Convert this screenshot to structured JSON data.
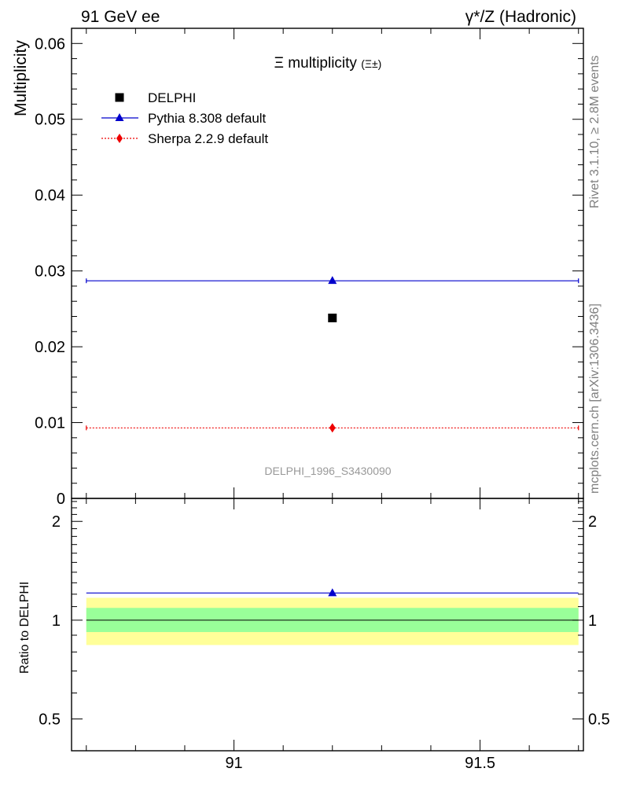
{
  "header": {
    "left": "91 GeV ee",
    "right": "γ*/Z (Hadronic)"
  },
  "side_labels": {
    "rivet": "Rivet 3.1.10, ≥ 2.8M events",
    "mcplots": "mcplots.cern.ch [arXiv:1306.3436]"
  },
  "watermark": "DELPHI_1996_S3430090",
  "chart_data": [
    {
      "type": "scatter",
      "title": "Ξ multiplicity (Ξ±)",
      "ylabel": "Multiplicity",
      "xlabel": "",
      "xlim": [
        90.67,
        91.71
      ],
      "ylim": [
        0,
        0.062
      ],
      "x_ticks": [],
      "y_ticks": [
        {
          "value": 0,
          "label": "0"
        },
        {
          "value": 0.01,
          "label": "0.01"
        },
        {
          "value": 0.02,
          "label": "0.02"
        },
        {
          "value": 0.03,
          "label": "0.03"
        },
        {
          "value": 0.04,
          "label": "0.04"
        },
        {
          "value": 0.05,
          "label": "0.05"
        },
        {
          "value": 0.06,
          "label": "0.06"
        }
      ],
      "legend_position": "top-left",
      "series": [
        {
          "name": "DELPHI",
          "marker": "square",
          "color": "#000000",
          "x": [
            91.2
          ],
          "y": [
            0.0238
          ],
          "line": false
        },
        {
          "name": "Pythia 8.308 default",
          "marker": "triangle",
          "color": "#0000cc",
          "x": [
            91.2
          ],
          "y": [
            0.0287
          ],
          "line": true,
          "line_style": "solid",
          "x_range": [
            90.7,
            91.7
          ]
        },
        {
          "name": "Sherpa 2.2.9 default",
          "marker": "diamond",
          "color": "#ee0000",
          "x": [
            91.2
          ],
          "y": [
            0.0093
          ],
          "line": true,
          "line_style": "dotted",
          "x_range": [
            90.7,
            91.7
          ]
        }
      ]
    },
    {
      "type": "scatter",
      "title": "",
      "ylabel": "Ratio to DELPHI",
      "xlabel": "",
      "xlim": [
        90.67,
        91.71
      ],
      "ylim": [
        0.4,
        2.35
      ],
      "y_scale": "log",
      "x_ticks": [
        {
          "value": 91,
          "label": "91"
        },
        {
          "value": 91.5,
          "label": "91.5"
        }
      ],
      "y_ticks": [
        {
          "value": 0.5,
          "label": "0.5"
        },
        {
          "value": 1,
          "label": "1"
        },
        {
          "value": 2,
          "label": "2"
        }
      ],
      "bands": [
        {
          "name": "total uncertainty",
          "color": "#ffff99",
          "low": 0.84,
          "high": 1.17,
          "x_range": [
            90.7,
            91.7
          ]
        },
        {
          "name": "statistical uncertainty",
          "color": "#99ff99",
          "low": 0.92,
          "high": 1.09,
          "x_range": [
            90.7,
            91.7
          ]
        }
      ],
      "reference_line": 1,
      "series": [
        {
          "name": "Pythia 8.308 default",
          "marker": "triangle",
          "color": "#0000cc",
          "x": [
            91.2
          ],
          "y": [
            1.21
          ],
          "line": true,
          "x_range": [
            90.7,
            91.7
          ]
        }
      ]
    }
  ]
}
